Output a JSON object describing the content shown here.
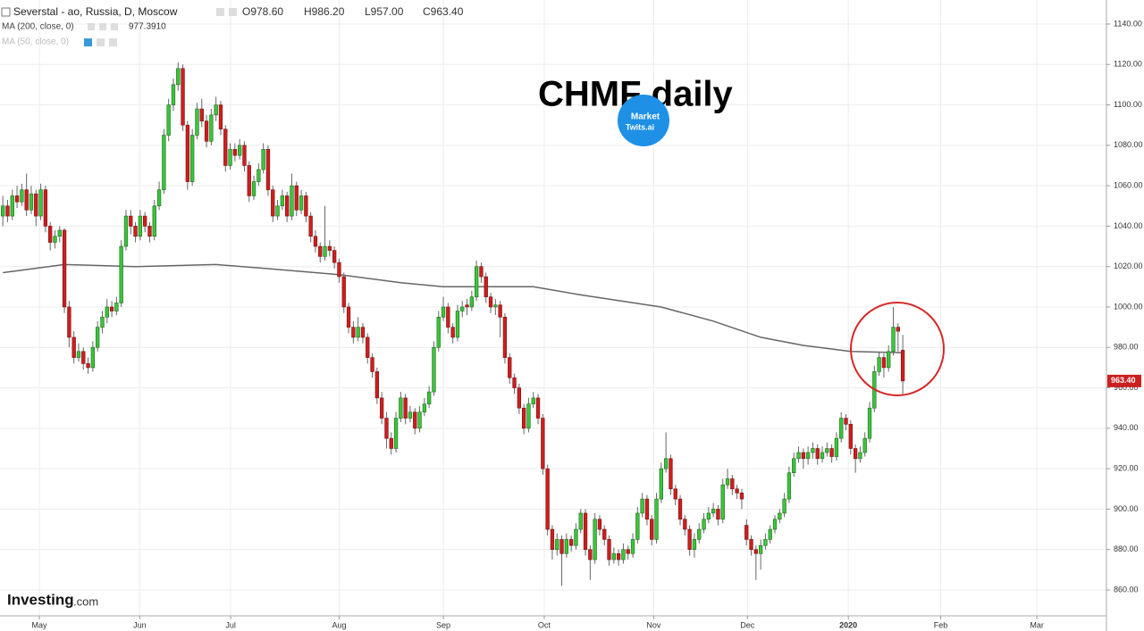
{
  "header": {
    "symbol": "Severstal - ao, Russia, D, Moscow",
    "open": "O978.60",
    "high": "H986.20",
    "low": "L957.00",
    "close": "C963.40",
    "ma200_value": "977.3910",
    "ma50_label": "MA (50, close, 0)"
  },
  "watermark": [
    "Investing",
    ".com"
  ],
  "logo": [
    "Market",
    "Twits.ai"
  ],
  "chart_data": {
    "type": "candlestick",
    "title": "CHMF daily",
    "xlim": [
      -0.6,
      233
    ],
    "ylim": [
      847.2,
      1151.9
    ],
    "xticks": [
      {
        "value": 7.7,
        "label": "May"
      },
      {
        "value": 28.9,
        "label": "Jun"
      },
      {
        "value": 48.1,
        "label": "Jul"
      },
      {
        "value": 71,
        "label": "Aug"
      },
      {
        "value": 93,
        "label": "Sep"
      },
      {
        "value": 114.3,
        "label": "Oct"
      },
      {
        "value": 137.4,
        "label": "Nov"
      },
      {
        "value": 157.2,
        "label": "Dec"
      },
      {
        "value": 178.5,
        "label": "2020"
      },
      {
        "value": 198,
        "label": "Feb"
      },
      {
        "value": 218.3,
        "label": "Mar"
      }
    ],
    "yticks": [
      {
        "value": 860,
        "label": "860.00"
      },
      {
        "value": 880,
        "label": "880.00"
      },
      {
        "value": 900,
        "label": "900.00"
      },
      {
        "value": 920,
        "label": "920.00"
      },
      {
        "value": 940,
        "label": "940.00"
      },
      {
        "value": 960,
        "label": "960.00"
      },
      {
        "value": 980,
        "label": "980.00"
      },
      {
        "value": 1000,
        "label": "1000.00"
      },
      {
        "value": 1020,
        "label": "1020.00"
      },
      {
        "value": 1040,
        "label": "1040.00"
      },
      {
        "value": 1060,
        "label": "1060.00"
      },
      {
        "value": 1080,
        "label": "1080.00"
      },
      {
        "value": 1100,
        "label": "1100.00"
      },
      {
        "value": 1120,
        "label": "1120.00"
      },
      {
        "value": 1140,
        "label": "1140.00"
      }
    ],
    "grid": true,
    "up_color": "#3cc43c",
    "down_color": "#cc1f1f",
    "last_price": {
      "value": 963.4,
      "label": "963.40"
    },
    "ma": {
      "name": "MA (200, close, 0)",
      "color": "#666666",
      "x": [
        0,
        13,
        28,
        45,
        56,
        71,
        84,
        93,
        112,
        122,
        139,
        150,
        160,
        169,
        179,
        190
      ],
      "values": [
        1017,
        1021,
        1020,
        1021,
        1019,
        1016,
        1012,
        1010,
        1010,
        1006,
        1000,
        993,
        985,
        981,
        978,
        977.4
      ]
    },
    "candles": [
      [
        1045,
        1055,
        1040,
        1050
      ],
      [
        1050,
        1053,
        1042,
        1045
      ],
      [
        1045,
        1058,
        1043,
        1055
      ],
      [
        1055,
        1060,
        1049,
        1052
      ],
      [
        1052,
        1061,
        1050,
        1058
      ],
      [
        1058,
        1066,
        1045,
        1048
      ],
      [
        1048,
        1060,
        1046,
        1056
      ],
      [
        1056,
        1058,
        1040,
        1045
      ],
      [
        1045,
        1061,
        1043,
        1058
      ],
      [
        1058,
        1060,
        1037,
        1040
      ],
      [
        1040,
        1042,
        1028,
        1032
      ],
      [
        1032,
        1038,
        1029,
        1035
      ],
      [
        1035,
        1040,
        1032,
        1038
      ],
      [
        1038,
        1039,
        997,
        1000
      ],
      [
        1000,
        1003,
        980,
        985
      ],
      [
        985,
        988,
        972,
        975
      ],
      [
        975,
        982,
        973,
        978
      ],
      [
        978,
        980,
        969,
        972
      ],
      [
        972,
        975,
        967,
        970
      ],
      [
        970,
        983,
        968,
        980
      ],
      [
        980,
        993,
        978,
        990
      ],
      [
        990,
        998,
        987,
        995
      ],
      [
        995,
        1004,
        992,
        1000
      ],
      [
        1000,
        1003,
        995,
        998
      ],
      [
        998,
        1005,
        996,
        1002
      ],
      [
        1002,
        1033,
        1000,
        1030
      ],
      [
        1030,
        1048,
        1028,
        1045
      ],
      [
        1045,
        1048,
        1036,
        1040
      ],
      [
        1040,
        1042,
        1032,
        1035
      ],
      [
        1035,
        1048,
        1033,
        1045
      ],
      [
        1045,
        1047,
        1037,
        1040
      ],
      [
        1040,
        1042,
        1032,
        1035
      ],
      [
        1035,
        1053,
        1033,
        1050
      ],
      [
        1050,
        1062,
        1048,
        1058
      ],
      [
        1058,
        1088,
        1056,
        1085
      ],
      [
        1085,
        1103,
        1082,
        1100
      ],
      [
        1100,
        1113,
        1097,
        1110
      ],
      [
        1110,
        1121,
        1107,
        1118
      ],
      [
        1118,
        1120,
        1087,
        1090
      ],
      [
        1090,
        1092,
        1058,
        1062
      ],
      [
        1062,
        1088,
        1060,
        1085
      ],
      [
        1085,
        1101,
        1083,
        1098
      ],
      [
        1098,
        1103,
        1089,
        1092
      ],
      [
        1092,
        1095,
        1079,
        1082
      ],
      [
        1082,
        1098,
        1080,
        1095
      ],
      [
        1095,
        1104,
        1092,
        1100
      ],
      [
        1100,
        1102,
        1085,
        1088
      ],
      [
        1088,
        1090,
        1067,
        1070
      ],
      [
        1070,
        1081,
        1068,
        1078
      ],
      [
        1078,
        1081,
        1072,
        1075
      ],
      [
        1075,
        1083,
        1073,
        1080
      ],
      [
        1080,
        1082,
        1067,
        1070
      ],
      [
        1070,
        1072,
        1052,
        1055
      ],
      [
        1055,
        1065,
        1053,
        1062
      ],
      [
        1062,
        1071,
        1060,
        1068
      ],
      [
        1068,
        1081,
        1066,
        1078
      ],
      [
        1078,
        1080,
        1055,
        1058
      ],
      [
        1058,
        1060,
        1042,
        1045
      ],
      [
        1045,
        1053,
        1043,
        1050
      ],
      [
        1050,
        1058,
        1048,
        1055
      ],
      [
        1055,
        1057,
        1042,
        1045
      ],
      [
        1045,
        1066,
        1043,
        1060
      ],
      [
        1060,
        1062,
        1045,
        1048
      ],
      [
        1048,
        1058,
        1046,
        1055
      ],
      [
        1055,
        1057,
        1042,
        1045
      ],
      [
        1045,
        1047,
        1032,
        1035
      ],
      [
        1035,
        1038,
        1027,
        1030
      ],
      [
        1030,
        1032,
        1022,
        1025
      ],
      [
        1025,
        1050,
        1023,
        1030
      ],
      [
        1030,
        1033,
        1025,
        1028
      ],
      [
        1028,
        1030,
        1019,
        1022
      ],
      [
        1022,
        1024,
        1012,
        1015
      ],
      [
        1015,
        1017,
        997,
        1000
      ],
      [
        1000,
        1002,
        987,
        990
      ],
      [
        990,
        993,
        982,
        985
      ],
      [
        985,
        995,
        983,
        990
      ],
      [
        990,
        992,
        982,
        985
      ],
      [
        985,
        987,
        972,
        975
      ],
      [
        975,
        977,
        965,
        968
      ],
      [
        968,
        970,
        952,
        955
      ],
      [
        955,
        958,
        942,
        945
      ],
      [
        945,
        948,
        930,
        935
      ],
      [
        935,
        938,
        927,
        930
      ],
      [
        930,
        948,
        928,
        945
      ],
      [
        945,
        958,
        943,
        955
      ],
      [
        955,
        957,
        942,
        945
      ],
      [
        945,
        951,
        943,
        948
      ],
      [
        948,
        950,
        937,
        940
      ],
      [
        940,
        951,
        938,
        948
      ],
      [
        948,
        955,
        946,
        952
      ],
      [
        952,
        961,
        950,
        958
      ],
      [
        958,
        983,
        956,
        980
      ],
      [
        980,
        998,
        978,
        995
      ],
      [
        995,
        1005,
        993,
        1000
      ],
      [
        1000,
        1002,
        987,
        990
      ],
      [
        990,
        992,
        982,
        985
      ],
      [
        985,
        1001,
        983,
        998
      ],
      [
        998,
        1003,
        995,
        1000
      ],
      [
        1001,
        1004,
        996,
        1000
      ],
      [
        1000,
        1008,
        998,
        1005
      ],
      [
        1005,
        1023,
        1003,
        1020
      ],
      [
        1020,
        1022,
        1012,
        1015
      ],
      [
        1015,
        1017,
        1002,
        1005
      ],
      [
        1005,
        1007,
        997,
        1000
      ],
      [
        1000,
        1004,
        996,
        1001
      ],
      [
        1001,
        1003,
        985,
        995
      ],
      [
        995,
        997,
        972,
        975
      ],
      [
        975,
        977,
        962,
        965
      ],
      [
        965,
        967,
        957,
        960
      ],
      [
        960,
        962,
        947,
        950
      ],
      [
        950,
        952,
        937,
        940
      ],
      [
        940,
        955,
        938,
        952
      ],
      [
        952,
        958,
        950,
        955
      ],
      [
        955,
        957,
        942,
        945
      ],
      [
        945,
        947,
        917,
        920
      ],
      [
        920,
        922,
        887,
        890
      ],
      [
        890,
        892,
        875,
        880
      ],
      [
        880,
        888,
        877,
        885
      ],
      [
        885,
        887,
        862,
        878
      ],
      [
        878,
        888,
        876,
        885
      ],
      [
        885,
        887,
        879,
        882
      ],
      [
        882,
        893,
        880,
        890
      ],
      [
        890,
        900,
        888,
        898
      ],
      [
        898,
        900,
        877,
        880
      ],
      [
        880,
        882,
        865,
        875
      ],
      [
        875,
        898,
        873,
        895
      ],
      [
        895,
        897,
        887,
        890
      ],
      [
        890,
        892,
        882,
        885
      ],
      [
        885,
        887,
        872,
        875
      ],
      [
        875,
        881,
        873,
        878
      ],
      [
        878,
        880,
        872,
        875
      ],
      [
        875,
        883,
        873,
        880
      ],
      [
        880,
        882,
        875,
        878
      ],
      [
        878,
        888,
        876,
        885
      ],
      [
        885,
        901,
        883,
        898
      ],
      [
        898,
        908,
        896,
        905
      ],
      [
        905,
        907,
        892,
        895
      ],
      [
        895,
        897,
        882,
        885
      ],
      [
        885,
        908,
        883,
        905
      ],
      [
        905,
        923,
        903,
        920
      ],
      [
        920,
        938,
        918,
        925
      ],
      [
        925,
        927,
        907,
        910
      ],
      [
        910,
        912,
        902,
        905
      ],
      [
        905,
        907,
        892,
        895
      ],
      [
        895,
        897,
        887,
        890
      ],
      [
        890,
        892,
        877,
        880
      ],
      [
        880,
        888,
        876,
        885
      ],
      [
        885,
        893,
        883,
        890
      ],
      [
        890,
        898,
        888,
        895
      ],
      [
        895,
        901,
        893,
        898
      ],
      [
        898,
        903,
        896,
        900
      ],
      [
        900,
        902,
        892,
        895
      ],
      [
        895,
        915,
        893,
        912
      ],
      [
        912,
        920,
        910,
        915
      ],
      [
        915,
        917,
        907,
        910
      ],
      [
        910,
        912,
        905,
        908
      ],
      [
        908,
        910,
        900,
        905
      ],
      [
        892,
        895,
        882,
        885
      ],
      [
        885,
        887,
        877,
        880
      ],
      [
        880,
        882,
        865,
        878
      ],
      [
        878,
        885,
        870,
        882
      ],
      [
        882,
        888,
        880,
        885
      ],
      [
        885,
        892,
        883,
        890
      ],
      [
        890,
        897,
        888,
        895
      ],
      [
        895,
        900,
        893,
        898
      ],
      [
        898,
        908,
        896,
        905
      ],
      [
        905,
        921,
        903,
        918
      ],
      [
        918,
        928,
        916,
        925
      ],
      [
        925,
        931,
        923,
        928
      ],
      [
        928,
        930,
        920,
        925
      ],
      [
        925,
        931,
        922,
        928
      ],
      [
        928,
        933,
        925,
        930
      ],
      [
        930,
        932,
        922,
        925
      ],
      [
        925,
        931,
        923,
        928
      ],
      [
        928,
        933,
        926,
        930
      ],
      [
        930,
        932,
        923,
        926
      ],
      [
        926,
        938,
        924,
        935
      ],
      [
        935,
        948,
        933,
        945
      ],
      [
        945,
        947,
        939,
        942
      ],
      [
        942,
        944,
        927,
        930
      ],
      [
        930,
        932,
        918,
        925
      ],
      [
        925,
        931,
        923,
        928
      ],
      [
        928,
        938,
        926,
        935
      ],
      [
        935,
        953,
        933,
        950
      ],
      [
        950,
        971,
        948,
        968
      ],
      [
        968,
        978,
        966,
        975
      ],
      [
        975,
        977,
        965,
        970
      ],
      [
        970,
        981,
        968,
        978
      ],
      [
        978,
        1000,
        976,
        990
      ],
      [
        990,
        992,
        978,
        988
      ],
      [
        978.6,
        986.2,
        957,
        963.4
      ]
    ]
  }
}
